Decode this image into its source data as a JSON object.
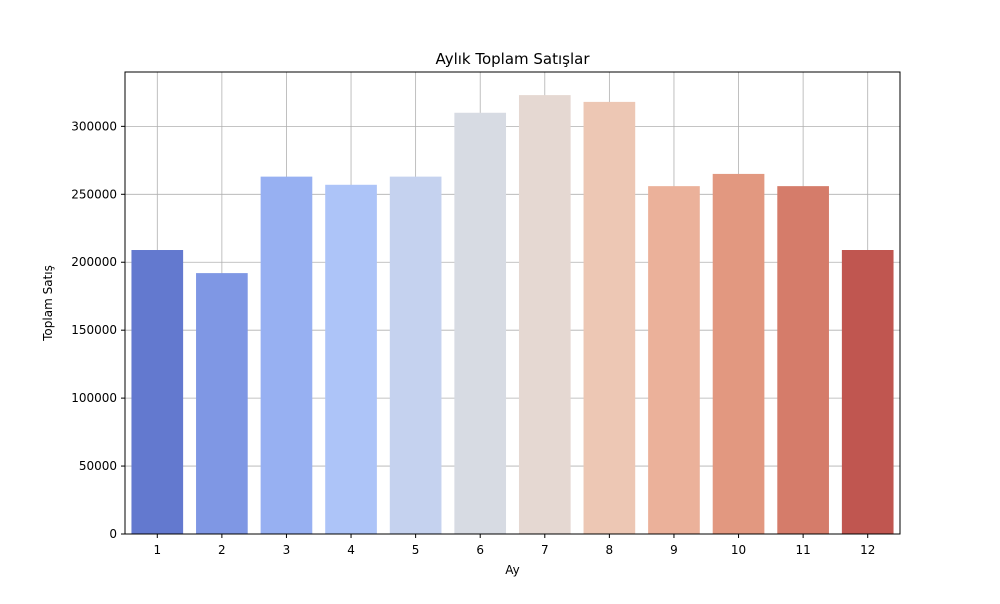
{
  "chart_data": {
    "type": "bar",
    "title": "Aylık Toplam Satışlar",
    "xlabel": "Ay",
    "ylabel": "Toplam Satış",
    "categories": [
      "1",
      "2",
      "3",
      "4",
      "5",
      "6",
      "7",
      "8",
      "9",
      "10",
      "11",
      "12"
    ],
    "values": [
      209000,
      192000,
      263000,
      257000,
      263000,
      310000,
      323000,
      318000,
      256000,
      265000,
      256000,
      209000
    ],
    "colors": [
      "#6379cf",
      "#7f97e4",
      "#97b0f2",
      "#adc4f8",
      "#c5d2ef",
      "#d7dbe3",
      "#e5d8d2",
      "#edc7b4",
      "#ebb19a",
      "#e29880",
      "#d57c6a",
      "#c05650"
    ],
    "ylim": [
      0,
      340000
    ],
    "yticks": [
      0,
      50000,
      100000,
      150000,
      200000,
      250000,
      300000
    ],
    "ytick_labels": [
      "0",
      "50000",
      "100000",
      "150000",
      "200000",
      "250000",
      "300000"
    ],
    "grid": true,
    "legend": "none"
  }
}
